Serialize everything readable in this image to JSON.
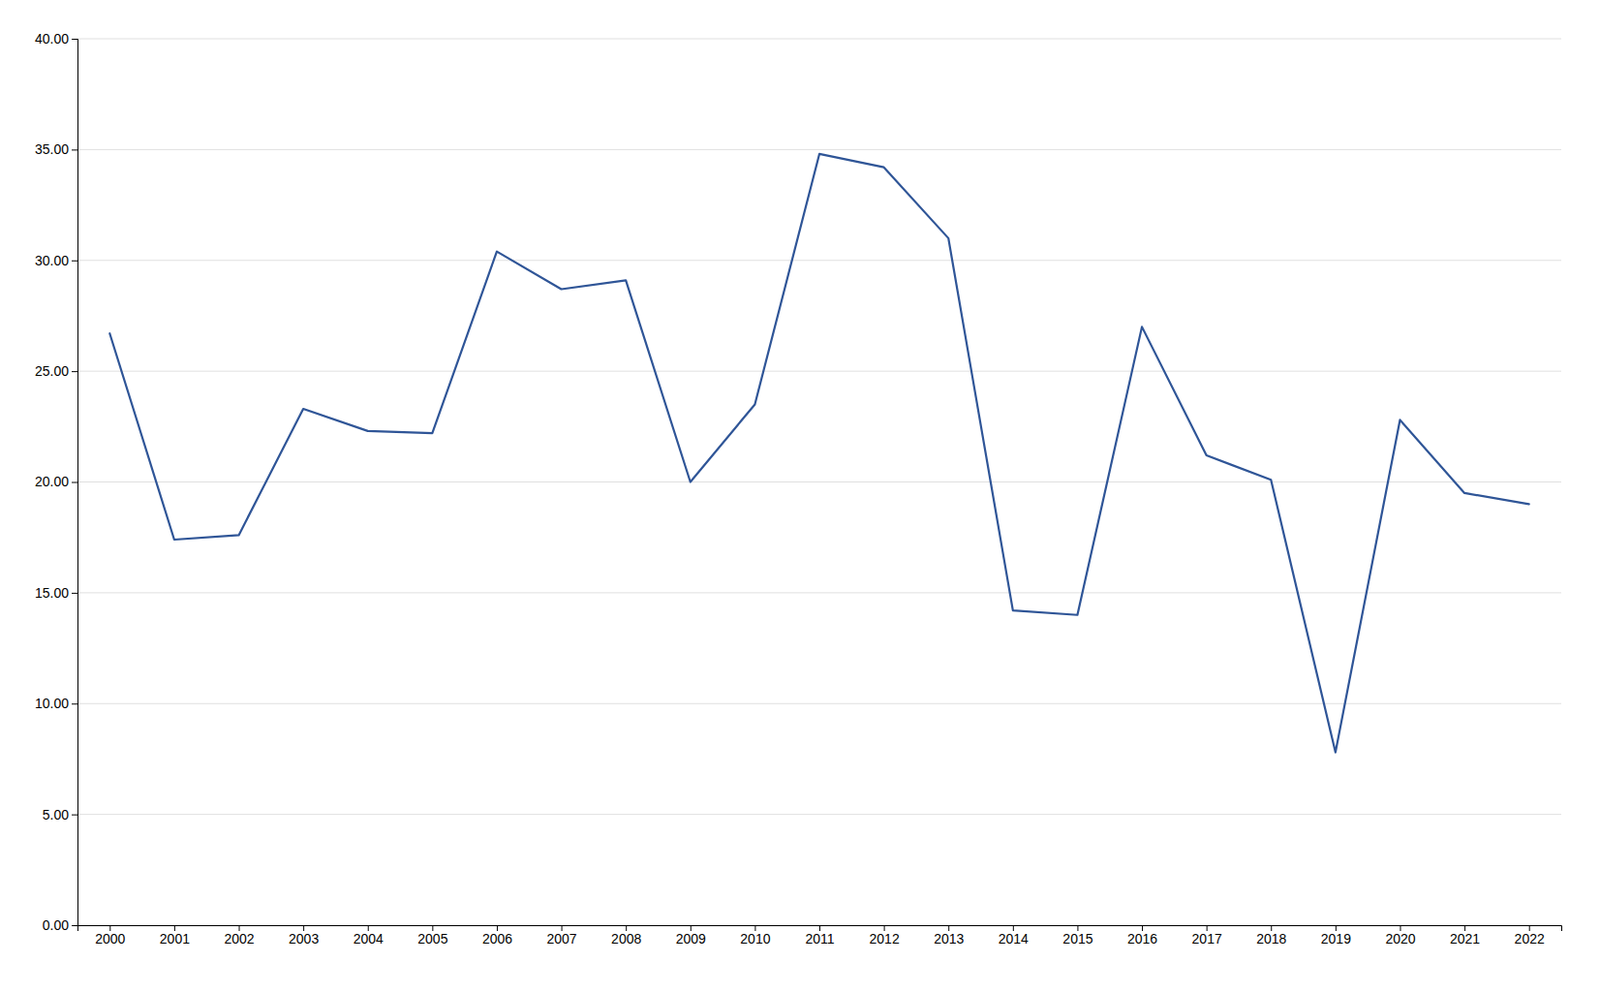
{
  "chart_data": {
    "type": "line",
    "x": [
      2000,
      2001,
      2002,
      2003,
      2004,
      2005,
      2006,
      2007,
      2008,
      2009,
      2010,
      2011,
      2012,
      2013,
      2014,
      2015,
      2016,
      2017,
      2018,
      2019,
      2020,
      2021,
      2022
    ],
    "values": [
      26.7,
      17.4,
      17.6,
      23.3,
      22.3,
      22.2,
      30.4,
      28.7,
      29.1,
      20.0,
      23.5,
      34.8,
      34.2,
      31.0,
      14.2,
      14.0,
      27.0,
      21.2,
      20.1,
      7.8,
      22.8,
      19.5,
      19.0
    ],
    "color": "#2F5597",
    "xlim": [
      1999.5,
      2022.5
    ],
    "xticks": [
      2000,
      2001,
      2002,
      2003,
      2004,
      2005,
      2006,
      2007,
      2008,
      2009,
      2010,
      2011,
      2012,
      2013,
      2014,
      2015,
      2016,
      2017,
      2018,
      2019,
      2020,
      2021,
      2022
    ],
    "ylim": [
      0,
      40
    ],
    "yticks": [
      {
        "value": 0.0,
        "label": "0.00"
      },
      {
        "value": 5.0,
        "label": "5.00"
      },
      {
        "value": 10.0,
        "label": "10.00"
      },
      {
        "value": 15.0,
        "label": "15.00"
      },
      {
        "value": 20.0,
        "label": "20.00"
      },
      {
        "value": 25.0,
        "label": "25.00"
      },
      {
        "value": 30.0,
        "label": "30.00"
      },
      {
        "value": 35.0,
        "label": "35.00"
      },
      {
        "value": 40.0,
        "label": "40.00"
      }
    ],
    "grid": true
  }
}
